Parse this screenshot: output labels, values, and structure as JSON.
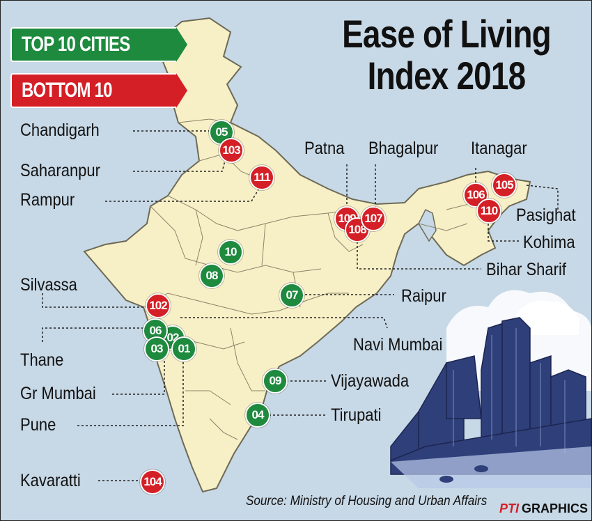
{
  "title": {
    "line1": "Ease of Living",
    "line2": "Index 2018"
  },
  "legend": {
    "top": "TOP 10 CITIES",
    "bottom": "BOTTOM 10"
  },
  "colors": {
    "top": "#1e8a3e",
    "bottom": "#d51f26",
    "map_fill": "#f7efc6",
    "sea": "#c7d8e6",
    "skyline": "#2f3f7a"
  },
  "cities": {
    "chandigarh": "Chandigarh",
    "saharanpur": "Saharanpur",
    "rampur": "Rampur",
    "silvassa": "Silvassa",
    "thane": "Thane",
    "gr_mumbai": "Gr Mumbai",
    "pune": "Pune",
    "kavaratti": "Kavaratti",
    "patna": "Patna",
    "bhagalpur": "Bhagalpur",
    "itanagar": "Itanagar",
    "pasighat": "Pasighat",
    "kohima": "Kohima",
    "bihar_sharif": "Bihar Sharif",
    "raipur": "Raipur",
    "navi_mumbai": "Navi Mumbai",
    "vijayawada": "Vijayawada",
    "tirupati": "Tirupati"
  },
  "ranks": {
    "chandigarh": "05",
    "saharanpur": "103",
    "rampur": "111",
    "silvassa": "102",
    "thane": "06",
    "navi_mumbai": "02",
    "gr_mumbai": "03",
    "pune": "01",
    "kavaratti": "104",
    "patna": "109",
    "bihar_sharif": "108",
    "bhagalpur": "107",
    "itanagar": "106",
    "pasighat": "105",
    "kohima": "110",
    "raipur": "07",
    "vijayawada": "09",
    "tirupati": "04",
    "city_10": "10",
    "city_08": "08"
  },
  "source": "Source: Ministry of Housing and Urban Affairs",
  "credit": {
    "logo": "PTI",
    "text": "GRAPHICS"
  }
}
